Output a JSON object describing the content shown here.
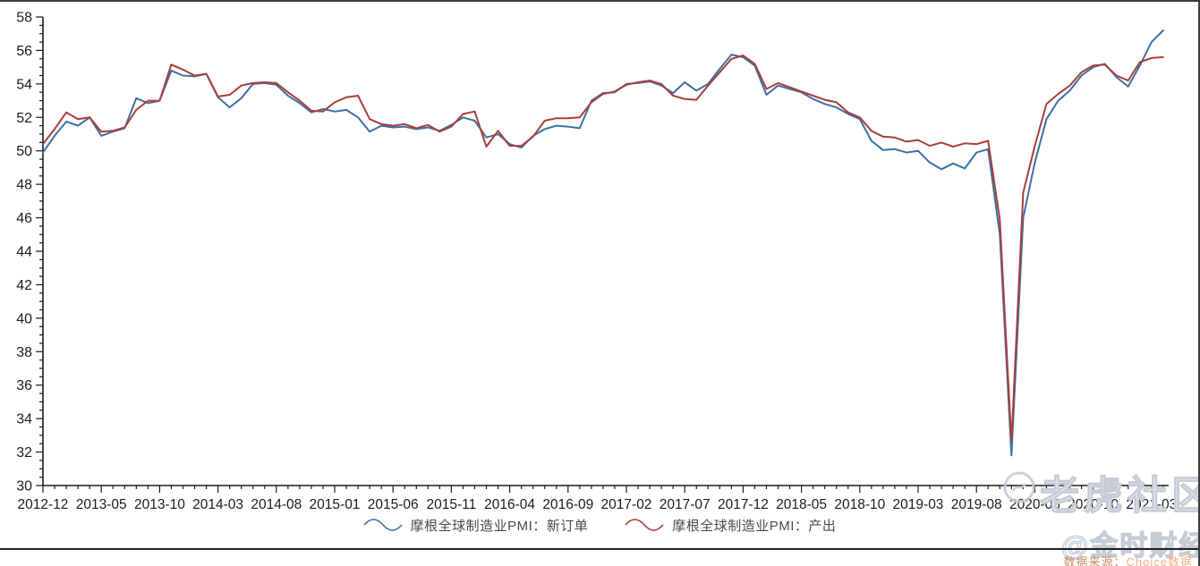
{
  "chart_data": {
    "type": "line",
    "title": "",
    "xlabel": "",
    "ylabel": "",
    "ylim": [
      30,
      58
    ],
    "y_major_step": 2,
    "y_minor_step": 0.5,
    "y_tick_labels": [
      "30",
      "32",
      "34",
      "36",
      "38",
      "40",
      "42",
      "44",
      "46",
      "48",
      "50",
      "52",
      "54",
      "56",
      "58"
    ],
    "x_label_every": 5,
    "x_tick_labels": [
      "2012-12",
      "2013-05",
      "2013-10",
      "2014-03",
      "2014-08",
      "2015-01",
      "2015-06",
      "2015-11",
      "2016-04",
      "2016-09",
      "2017-02",
      "2017-07",
      "2017-12",
      "2018-05",
      "2018-10",
      "2019-03",
      "2019-08",
      "2020-05",
      "2020-10",
      "2021-03"
    ],
    "grid": false,
    "legend_position": "bottom-center",
    "axis_color": "#1c1c1c",
    "series": [
      {
        "name": "摩根全球制造业PMI：新订单",
        "color": "#3d6fa3",
        "values": [
          49.9,
          50.9,
          51.75,
          51.5,
          52.0,
          50.9,
          51.15,
          51.35,
          53.15,
          52.85,
          53.0,
          54.8,
          54.5,
          54.45,
          54.6,
          53.2,
          52.6,
          53.15,
          54.0,
          54.05,
          53.95,
          53.3,
          52.85,
          52.3,
          52.5,
          52.35,
          52.45,
          52.0,
          51.15,
          51.5,
          51.4,
          51.45,
          51.3,
          51.4,
          51.2,
          51.55,
          52.0,
          51.8,
          50.8,
          51.0,
          50.4,
          50.2,
          50.9,
          51.3,
          51.5,
          51.45,
          51.35,
          53.0,
          53.45,
          53.5,
          54.0,
          54.05,
          54.15,
          53.9,
          53.45,
          54.1,
          53.6,
          54.0,
          54.9,
          55.75,
          55.6,
          55.1,
          53.35,
          53.9,
          53.7,
          53.5,
          53.1,
          52.8,
          52.6,
          52.2,
          51.9,
          50.6,
          50.05,
          50.1,
          49.9,
          50.0,
          49.3,
          48.9,
          49.25,
          48.95,
          49.9,
          50.1,
          45.0,
          31.8,
          46.0,
          49.3,
          51.9,
          53.0,
          53.6,
          54.5,
          55.0,
          55.2,
          54.4,
          53.85,
          55.1,
          56.5,
          57.2
        ]
      },
      {
        "name": "摩根全球制造业PMI：产出",
        "color": "#a93e3b",
        "values": [
          50.4,
          51.3,
          52.3,
          51.9,
          52.0,
          51.15,
          51.2,
          51.4,
          52.45,
          53.0,
          53.0,
          55.15,
          54.85,
          54.5,
          54.6,
          53.25,
          53.35,
          53.9,
          54.05,
          54.1,
          54.05,
          53.5,
          53.0,
          52.4,
          52.35,
          52.9,
          53.2,
          53.3,
          51.9,
          51.6,
          51.5,
          51.6,
          51.35,
          51.55,
          51.15,
          51.45,
          52.2,
          52.35,
          50.25,
          51.2,
          50.3,
          50.3,
          50.85,
          51.8,
          51.95,
          51.95,
          52.0,
          52.9,
          53.4,
          53.55,
          53.95,
          54.1,
          54.2,
          54.0,
          53.3,
          53.1,
          53.05,
          53.9,
          54.7,
          55.5,
          55.7,
          55.2,
          53.7,
          54.05,
          53.8,
          53.55,
          53.3,
          53.05,
          52.9,
          52.3,
          52.0,
          51.2,
          50.85,
          50.8,
          50.55,
          50.65,
          50.3,
          50.5,
          50.25,
          50.45,
          50.4,
          50.6,
          45.9,
          32.6,
          47.5,
          50.3,
          52.8,
          53.4,
          53.9,
          54.7,
          55.1,
          55.15,
          54.5,
          54.2,
          55.3,
          55.55,
          55.6
        ]
      }
    ]
  },
  "watermarks": {
    "community": "老虎社区",
    "account": "@金时财经"
  },
  "source": {
    "prefix": "数据来源：",
    "brand": "Choice",
    "suffix": "数据",
    "prefix_color": "#c98c64",
    "brand_color": "#f4b183"
  }
}
